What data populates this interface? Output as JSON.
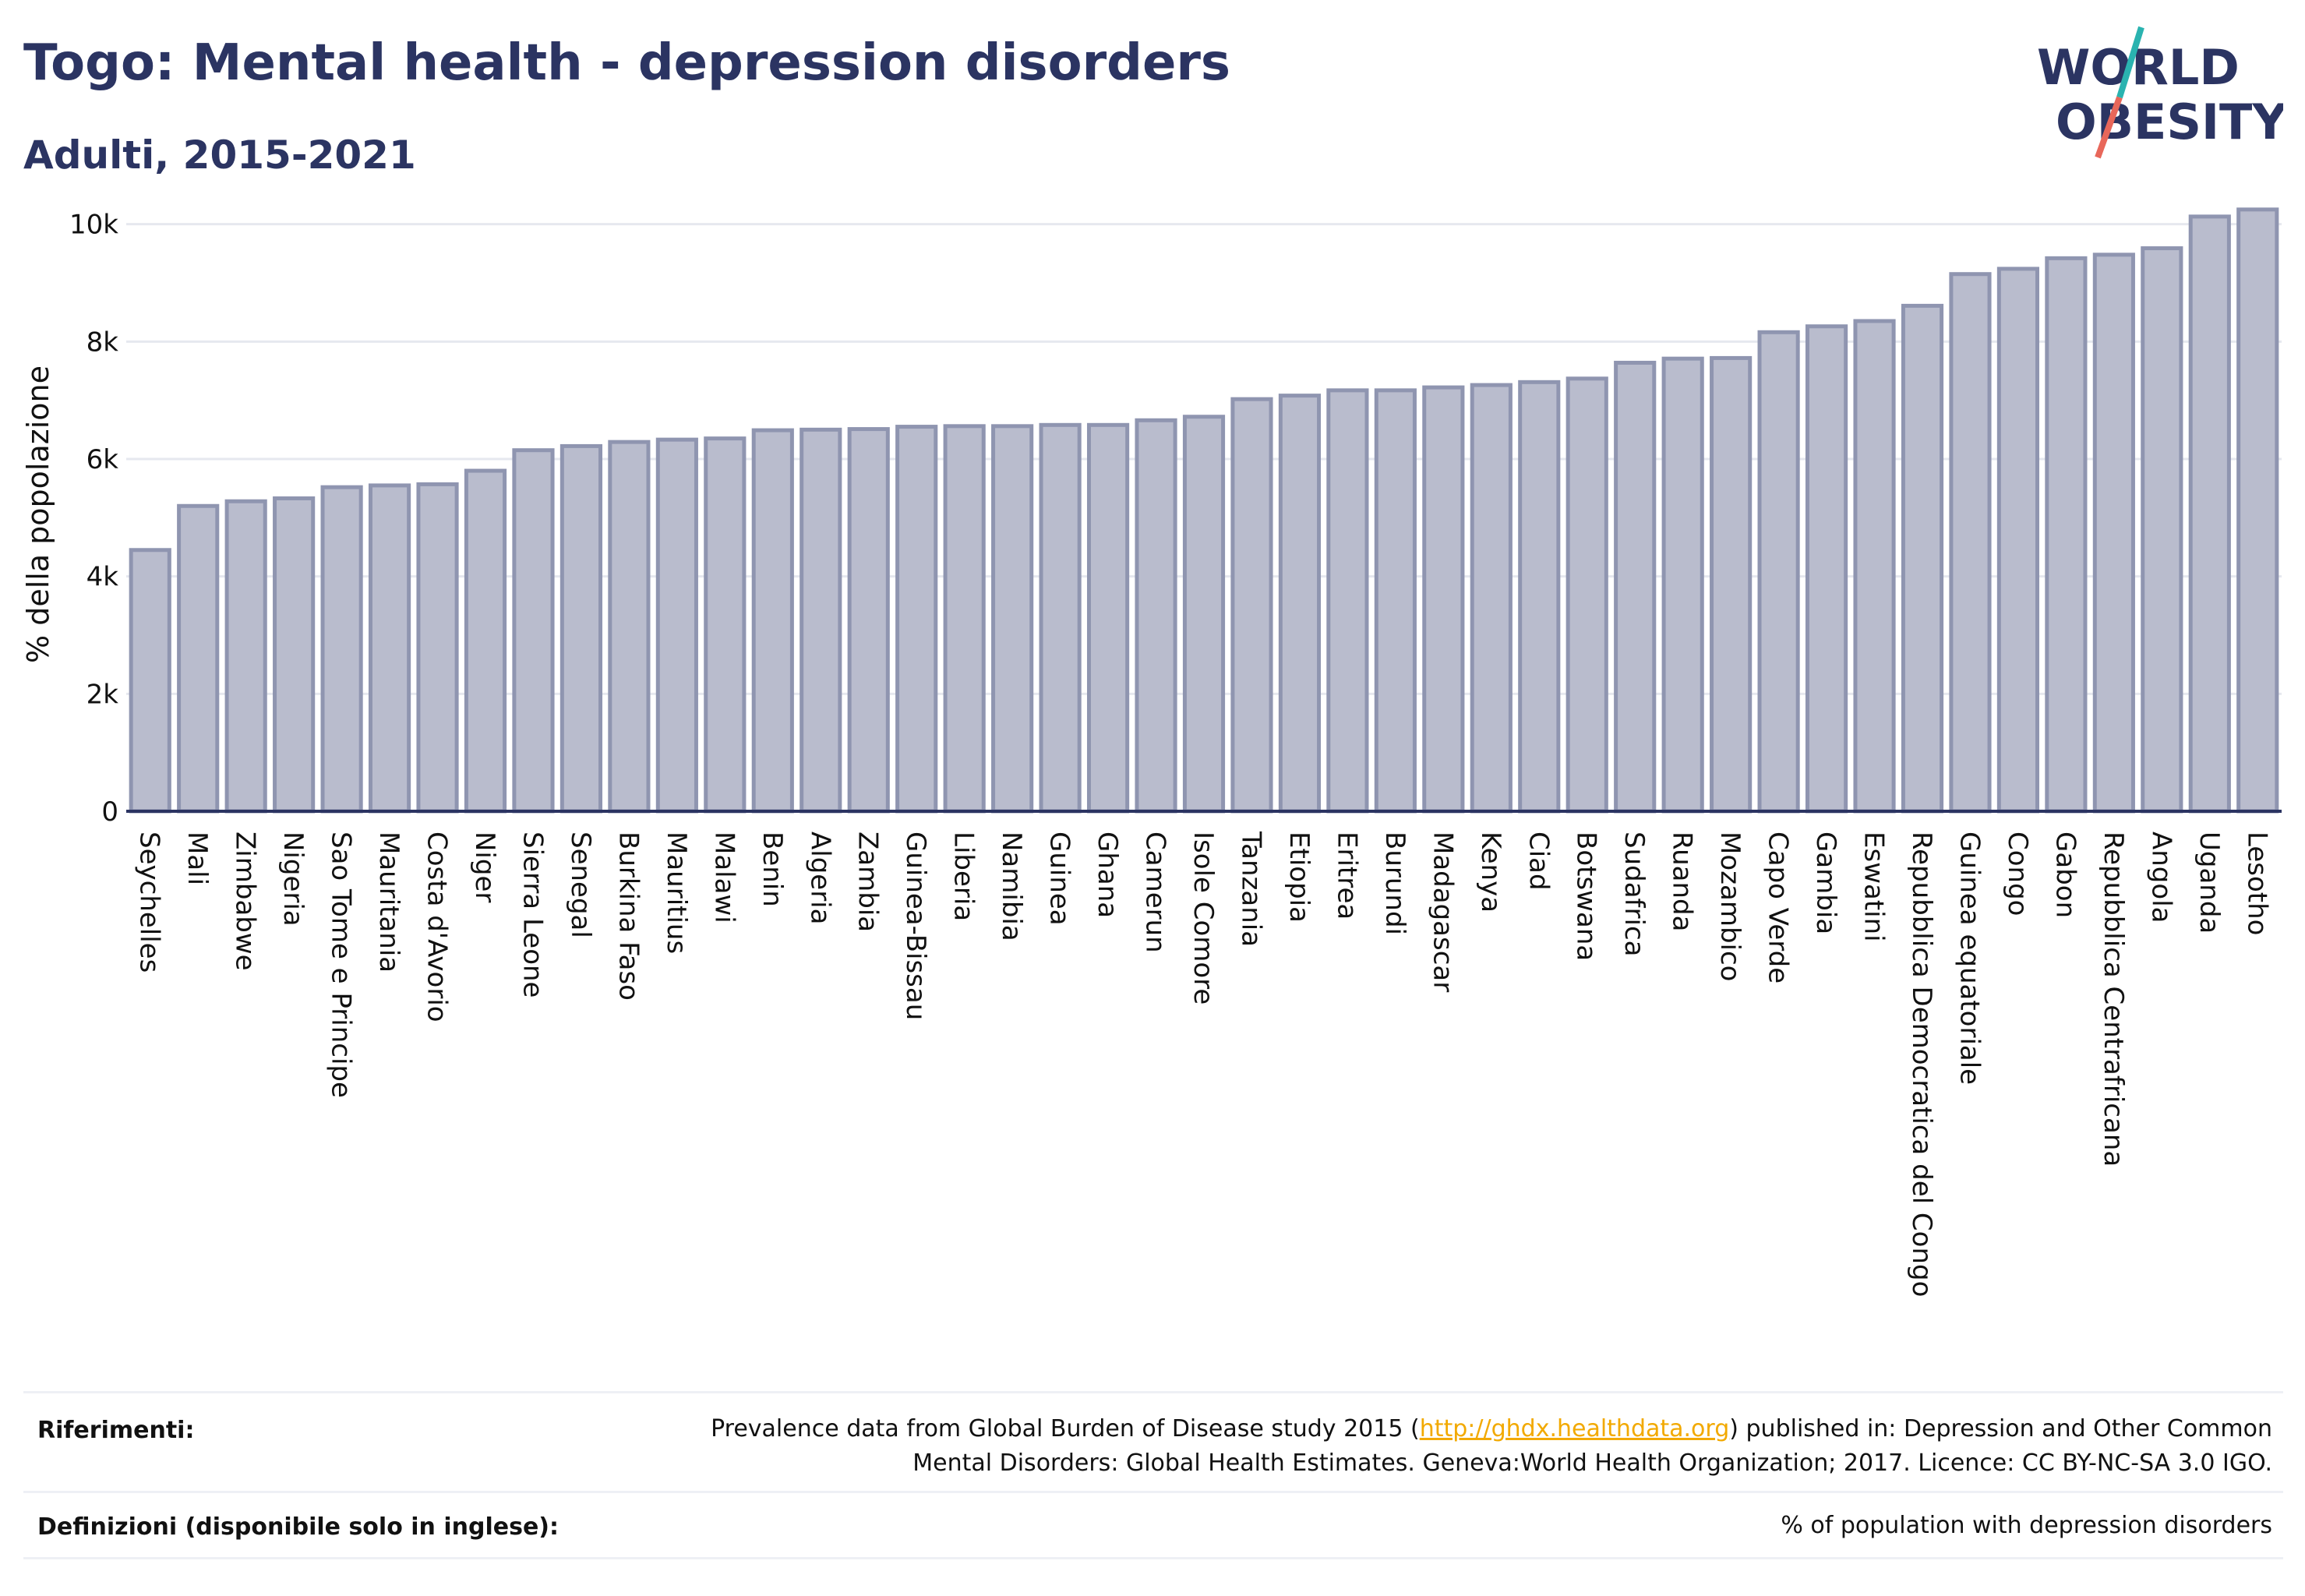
{
  "header": {
    "title": "Togo: Mental health - depression disorders",
    "subtitle": "Adulti, 2015-2021"
  },
  "logo": {
    "line1": "WORLD",
    "line2": "OBESITY",
    "colors": {
      "text": "#2b3462",
      "slash_top": "#2ab3b0",
      "slash_bottom": "#e8675a"
    }
  },
  "chart_data": {
    "type": "bar",
    "ylabel": "% della popolazione",
    "ylim": [
      0,
      10500
    ],
    "yticks": [
      0,
      2000,
      4000,
      6000,
      8000,
      10000
    ],
    "ytick_labels": [
      "0",
      "2k",
      "4k",
      "6k",
      "8k",
      "10k"
    ],
    "grid": true,
    "bar_color": "#b9bccd",
    "bar_edge_color": "#8f95b0",
    "categories": [
      "Seychelles",
      "Mali",
      "Zimbabwe",
      "Nigeria",
      "Sao Tome e Principe",
      "Mauritania",
      "Costa d'Avorio",
      "Niger",
      "Sierra Leone",
      "Senegal",
      "Burkina Faso",
      "Mauritius",
      "Malawi",
      "Benin",
      "Algeria",
      "Zambia",
      "Guinea-Bissau",
      "Liberia",
      "Namibia",
      "Guinea",
      "Ghana",
      "Camerun",
      "Isole Comore",
      "Tanzania",
      "Etiopia",
      "Eritrea",
      "Burundi",
      "Madagascar",
      "Kenya",
      "Ciad",
      "Botswana",
      "Sudafrica",
      "Ruanda",
      "Mozambico",
      "Capo Verde",
      "Gambia",
      "Eswatini",
      "Repubblica Democratica del Congo",
      "Guinea equatoriale",
      "Congo",
      "Gabon",
      "Repubblica Centrafricana",
      "Angola",
      "Uganda",
      "Lesotho"
    ],
    "values": [
      4450,
      5200,
      5280,
      5330,
      5520,
      5550,
      5570,
      5800,
      6150,
      6220,
      6290,
      6330,
      6350,
      6490,
      6500,
      6510,
      6550,
      6560,
      6560,
      6580,
      6580,
      6660,
      6720,
      7020,
      7080,
      7170,
      7170,
      7220,
      7260,
      7310,
      7370,
      7640,
      7710,
      7720,
      8160,
      8260,
      8350,
      8610,
      9150,
      9240,
      9420,
      9480,
      9590,
      10130,
      10250
    ]
  },
  "footer": {
    "references_label": "Riferimenti:",
    "references_text_before": "Prevalence data from Global Burden of Disease study 2015 (",
    "references_link": "http://ghdx.healthdata.org",
    "references_text_after": ") published in: Depression and Other Common",
    "references_line2": "Mental Disorders: Global Health Estimates. Geneva:World Health Organization; 2017. Licence: CC BY-NC-SA 3.0 IGO.",
    "definitions_label": "Definizioni (disponibile solo in inglese):",
    "definitions_text": "% of population with depression disorders"
  }
}
